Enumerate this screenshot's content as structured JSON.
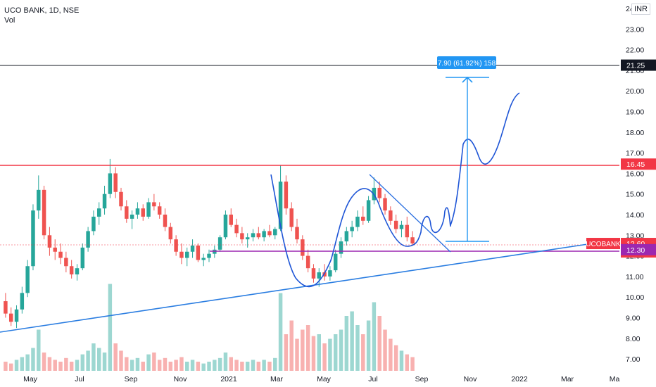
{
  "legend": {
    "title": "UCO BANK, 1D, NSE",
    "vol": "Vol"
  },
  "currency": "INR",
  "chart_data": {
    "type": "candlestick",
    "symbol": "UCOBANK",
    "y_axis": {
      "ticks": [
        "24.00",
        "23.00",
        "22.00",
        "21.00",
        "20.00",
        "19.00",
        "18.00",
        "17.00",
        "16.00",
        "15.00",
        "14.00",
        "13.00",
        "12.00",
        "11.00",
        "10.00",
        "9.00",
        "8.00",
        "7.00"
      ],
      "range": [
        6.8,
        24.3
      ]
    },
    "x_axis": {
      "ticks": [
        "May",
        "Jul",
        "Sep",
        "Nov",
        "2021",
        "Mar",
        "May",
        "Jul",
        "Sep",
        "Nov",
        "2022",
        "Mar",
        "Ma"
      ]
    },
    "price_labels": [
      {
        "text": "21.25",
        "value": 21.25,
        "color": "#131722"
      },
      {
        "text": "16.45",
        "value": 16.45,
        "color": "#f23645"
      },
      {
        "text": "12.60",
        "value": 12.6,
        "color": "#f23645",
        "extra": "04:11:59",
        "symbol": "UCOBANK"
      },
      {
        "text": "12.30",
        "value": 12.3,
        "color": "#9c27b0"
      }
    ],
    "measure_label": "7.90 (61.92%) 158",
    "horizontal_levels": [
      21.25,
      16.45,
      12.3
    ],
    "trendline": {
      "from": [
        "2020-04",
        8.5
      ],
      "to": [
        "2022-03",
        12.9
      ]
    },
    "candles_ohlc_approx": [
      [
        9.8,
        10.2,
        9.0,
        9.2
      ],
      [
        9.2,
        9.5,
        8.6,
        8.8
      ],
      [
        8.8,
        9.6,
        8.5,
        9.4
      ],
      [
        9.4,
        10.5,
        9.2,
        10.2
      ],
      [
        10.2,
        11.8,
        10.0,
        11.5
      ],
      [
        11.5,
        14.5,
        11.3,
        14.2
      ],
      [
        14.2,
        15.9,
        13.8,
        15.2
      ],
      [
        15.2,
        15.4,
        12.8,
        13.0
      ],
      [
        13.0,
        13.4,
        12.0,
        12.4
      ],
      [
        12.4,
        12.8,
        11.8,
        12.2
      ],
      [
        12.2,
        12.6,
        11.6,
        11.9
      ],
      [
        11.9,
        12.2,
        11.2,
        11.5
      ],
      [
        11.5,
        11.8,
        10.9,
        11.1
      ],
      [
        11.1,
        11.6,
        10.8,
        11.4
      ],
      [
        11.4,
        12.6,
        11.3,
        12.4
      ],
      [
        12.4,
        13.4,
        12.2,
        13.2
      ],
      [
        13.2,
        14.2,
        13.0,
        13.9
      ],
      [
        13.9,
        14.6,
        13.5,
        14.3
      ],
      [
        14.3,
        15.4,
        14.0,
        15.0
      ],
      [
        15.0,
        16.7,
        14.8,
        16.0
      ],
      [
        16.0,
        16.3,
        14.8,
        15.1
      ],
      [
        15.1,
        15.3,
        14.2,
        14.4
      ],
      [
        14.4,
        14.7,
        13.6,
        13.8
      ],
      [
        13.8,
        14.2,
        13.3,
        14.0
      ],
      [
        14.0,
        14.6,
        13.8,
        14.3
      ],
      [
        14.3,
        14.5,
        13.7,
        13.9
      ],
      [
        13.9,
        14.8,
        13.8,
        14.6
      ],
      [
        14.6,
        15.0,
        14.2,
        14.4
      ],
      [
        14.4,
        14.6,
        13.8,
        14.0
      ],
      [
        14.0,
        14.3,
        13.2,
        13.4
      ],
      [
        13.4,
        13.6,
        12.6,
        12.8
      ],
      [
        12.8,
        13.0,
        12.0,
        12.2
      ],
      [
        12.2,
        12.6,
        11.6,
        11.9
      ],
      [
        11.9,
        12.4,
        11.5,
        12.2
      ],
      [
        12.2,
        12.8,
        11.9,
        12.5
      ],
      [
        12.5,
        12.6,
        11.7,
        11.8
      ],
      [
        11.8,
        12.1,
        11.5,
        11.9
      ],
      [
        11.9,
        12.3,
        11.7,
        12.1
      ],
      [
        12.1,
        12.5,
        11.9,
        12.3
      ],
      [
        12.3,
        13.0,
        12.2,
        12.9
      ],
      [
        12.9,
        14.2,
        12.8,
        14.0
      ],
      [
        14.0,
        14.3,
        13.4,
        13.5
      ],
      [
        13.5,
        13.8,
        12.9,
        13.1
      ],
      [
        13.1,
        13.4,
        12.6,
        12.8
      ],
      [
        12.8,
        13.1,
        12.4,
        12.9
      ],
      [
        12.9,
        13.3,
        12.7,
        13.1
      ],
      [
        13.1,
        13.4,
        12.8,
        12.9
      ],
      [
        12.9,
        13.3,
        12.7,
        13.2
      ],
      [
        13.2,
        13.5,
        12.9,
        13.0
      ],
      [
        13.0,
        13.4,
        12.8,
        13.3
      ],
      [
        13.3,
        16.4,
        13.2,
        15.6
      ],
      [
        15.6,
        15.9,
        14.0,
        14.3
      ],
      [
        14.3,
        14.6,
        13.2,
        13.4
      ],
      [
        13.4,
        13.8,
        12.6,
        12.8
      ],
      [
        12.8,
        13.0,
        11.8,
        12.0
      ],
      [
        12.0,
        12.3,
        11.2,
        11.4
      ],
      [
        11.4,
        11.6,
        10.7,
        10.9
      ],
      [
        10.9,
        11.4,
        10.5,
        11.2
      ],
      [
        11.2,
        11.6,
        10.8,
        11.0
      ],
      [
        11.0,
        11.5,
        10.8,
        11.3
      ],
      [
        11.3,
        12.3,
        11.2,
        12.1
      ],
      [
        12.1,
        12.9,
        11.9,
        12.7
      ],
      [
        12.7,
        13.4,
        12.5,
        13.2
      ],
      [
        13.2,
        13.7,
        12.9,
        13.4
      ],
      [
        13.4,
        14.2,
        13.2,
        13.9
      ],
      [
        13.9,
        14.4,
        13.5,
        13.7
      ],
      [
        13.7,
        14.9,
        13.6,
        14.7
      ],
      [
        14.7,
        15.8,
        14.5,
        15.3
      ],
      [
        15.3,
        15.6,
        14.6,
        14.8
      ],
      [
        14.8,
        15.0,
        14.0,
        14.2
      ],
      [
        14.2,
        14.4,
        13.5,
        13.7
      ],
      [
        13.7,
        14.0,
        13.1,
        13.3
      ],
      [
        13.3,
        13.7,
        12.9,
        13.5
      ],
      [
        13.5,
        13.9,
        12.7,
        12.9
      ],
      [
        12.9,
        13.2,
        12.5,
        12.6
      ]
    ],
    "volume_relative": [
      0.1,
      0.08,
      0.12,
      0.15,
      0.18,
      0.25,
      0.45,
      0.2,
      0.15,
      0.12,
      0.1,
      0.14,
      0.1,
      0.12,
      0.18,
      0.22,
      0.3,
      0.25,
      0.2,
      0.95,
      0.3,
      0.22,
      0.15,
      0.12,
      0.14,
      0.1,
      0.18,
      0.2,
      0.12,
      0.14,
      0.1,
      0.12,
      0.15,
      0.1,
      0.12,
      0.1,
      0.08,
      0.1,
      0.12,
      0.14,
      0.2,
      0.15,
      0.12,
      0.1,
      0.1,
      0.12,
      0.1,
      0.12,
      0.1,
      0.14,
      0.85,
      0.4,
      0.55,
      0.35,
      0.45,
      0.5,
      0.38,
      0.4,
      0.3,
      0.35,
      0.4,
      0.45,
      0.6,
      0.65,
      0.5,
      0.4,
      0.55,
      0.75,
      0.6,
      0.45,
      0.35,
      0.28,
      0.22,
      0.18,
      0.15
    ]
  }
}
